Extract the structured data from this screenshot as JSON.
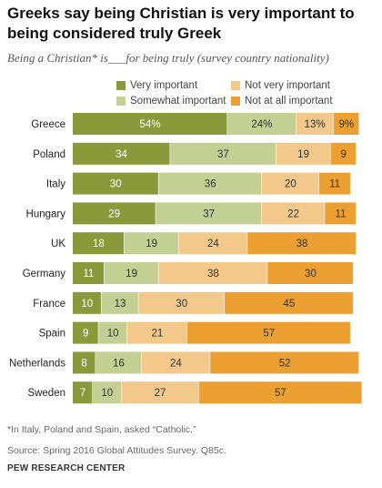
{
  "header": {
    "title": "Greeks say being Christian is very important to being considered truly Greek",
    "subtitle": "Being a Christian* is___for being truly (survey country nationality)"
  },
  "footer": {
    "footnote": "*In Italy, Poland and Spain, asked “Catholic.”",
    "source": "Source: Spring 2016 Global Attitudes Survey. Q85c.",
    "org": "PEW RESEARCH CENTER"
  },
  "colors": {
    "very": "#8a9a3b",
    "somewhat": "#c3cf93",
    "notvery": "#f2c98a",
    "notatall": "#eba031"
  },
  "chart_data": {
    "type": "bar",
    "orientation": "horizontal",
    "stacked": true,
    "categories": [
      "Greece",
      "Poland",
      "Italy",
      "Hungary",
      "UK",
      "Germany",
      "France",
      "Spain",
      "Netherlands",
      "Sweden"
    ],
    "series": [
      {
        "name": "Very important",
        "color": "#8a9a3b",
        "values": [
          54,
          34,
          30,
          29,
          18,
          11,
          10,
          9,
          8,
          7
        ]
      },
      {
        "name": "Somewhat important",
        "color": "#c3cf93",
        "values": [
          24,
          37,
          36,
          37,
          19,
          19,
          13,
          10,
          16,
          10
        ]
      },
      {
        "name": "Not very important",
        "color": "#f2c98a",
        "values": [
          13,
          19,
          20,
          22,
          24,
          38,
          30,
          21,
          24,
          27
        ]
      },
      {
        "name": "Not at all important",
        "color": "#eba031",
        "values": [
          9,
          9,
          11,
          11,
          38,
          30,
          45,
          57,
          52,
          57
        ]
      }
    ],
    "data_labels": [
      [
        "54%",
        "24%",
        "13%",
        "9%"
      ],
      [
        "34",
        "37",
        "19",
        "9"
      ],
      [
        "30",
        "36",
        "20",
        "11"
      ],
      [
        "29",
        "37",
        "22",
        "11"
      ],
      [
        "18",
        "19",
        "24",
        "38"
      ],
      [
        "11",
        "19",
        "38",
        "30"
      ],
      [
        "10",
        "13",
        "30",
        "45"
      ],
      [
        "9",
        "10",
        "21",
        "57"
      ],
      [
        "8",
        "16",
        "24",
        "52"
      ],
      [
        "7",
        "10",
        "27",
        "57"
      ]
    ],
    "xlim": [
      0,
      100
    ],
    "legend": {
      "placement": "top",
      "columns": 2,
      "order": [
        "Very important",
        "Not very important",
        "Somewhat important",
        "Not at all important"
      ]
    },
    "grid": false
  }
}
